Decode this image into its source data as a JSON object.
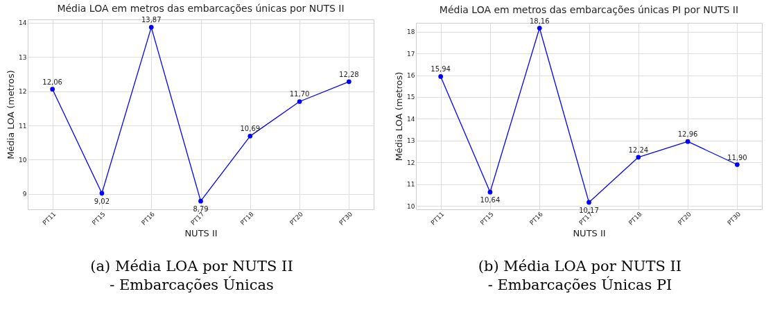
{
  "chart_data": [
    {
      "type": "line",
      "title": "Média LOA em metros das embarcações únicas por NUTS II",
      "xlabel": "NUTS II",
      "ylabel": "Média LOA (metros)",
      "categories": [
        "PT11",
        "PT15",
        "PT16",
        "PT17",
        "PT18",
        "PT20",
        "PT30"
      ],
      "series": [
        {
          "color": "#0000ff",
          "values": [
            12.06,
            9.02,
            13.87,
            8.79,
            10.69,
            11.7,
            12.28
          ]
        }
      ],
      "value_labels": [
        "12,06",
        "9,02",
        "13,87",
        "8,79",
        "10,69",
        "11,70",
        "12,28"
      ],
      "ylim": [
        8.55,
        14.1
      ],
      "yticks": [
        9,
        10,
        11,
        12,
        13,
        14
      ],
      "grid": true,
      "marker": "circle",
      "line_style": "solid",
      "annotations": [
        "(a) Média LOA por NUTS II - Embarcações Únicas"
      ]
    },
    {
      "type": "line",
      "title": "Média LOA em metros das embarcações únicas PI por NUTS II",
      "xlabel": "NUTS II",
      "ylabel": "Média LOA (metros)",
      "categories": [
        "PT11",
        "PT15",
        "PT16",
        "PT17",
        "PT18",
        "PT20",
        "PT30"
      ],
      "series": [
        {
          "color": "#0000ff",
          "values": [
            15.94,
            10.64,
            18.16,
            10.17,
            12.24,
            12.96,
            11.9
          ]
        }
      ],
      "value_labels": [
        "15,94",
        "10,64",
        "18,16",
        "10,17",
        "12,24",
        "12,96",
        "11,90"
      ],
      "ylim": [
        9.85,
        18.4
      ],
      "yticks": [
        10,
        11,
        12,
        13,
        14,
        15,
        16,
        17,
        18
      ],
      "grid": true,
      "marker": "circle",
      "line_style": "solid",
      "annotations": [
        "(b) Média LOA por NUTS II - Embarcações Únicas PI"
      ]
    }
  ]
}
